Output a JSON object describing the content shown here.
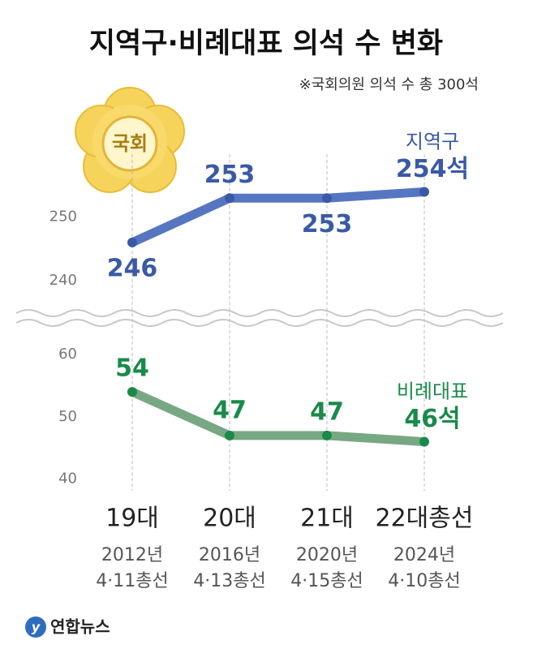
{
  "header": {
    "title": "지역구·비례대표 의석 수 변화",
    "subtitle": "※국회의원 의석 수 총 300석"
  },
  "emblem": {
    "label": "국회"
  },
  "axis": {
    "categories": [
      "19대",
      "20대",
      "21대",
      "22대총선"
    ],
    "years": [
      "2012년",
      "2016년",
      "2020년",
      "2024년"
    ],
    "elections": [
      "4·11총선",
      "4·13총선",
      "4·15총선",
      "4·10총선"
    ]
  },
  "chart_data": [
    {
      "type": "line",
      "series": [
        {
          "name": "지역구",
          "color": "#5676c2",
          "label_color": "#3a59a6",
          "values": [
            246,
            253,
            253,
            254
          ],
          "value_labels": [
            "246",
            "253",
            "253",
            "254석"
          ]
        }
      ],
      "ylim": [
        236,
        262
      ],
      "yticks": [
        240,
        250
      ]
    },
    {
      "type": "line",
      "series": [
        {
          "name": "비례대표",
          "color": "#78a883",
          "label_color": "#1a8a4a",
          "values": [
            54,
            47,
            47,
            46
          ],
          "value_labels": [
            "54",
            "47",
            "47",
            "46석"
          ]
        }
      ],
      "ylim": [
        38,
        63
      ],
      "yticks": [
        40,
        50,
        60
      ]
    }
  ],
  "footer": {
    "source": "연합뉴스"
  }
}
